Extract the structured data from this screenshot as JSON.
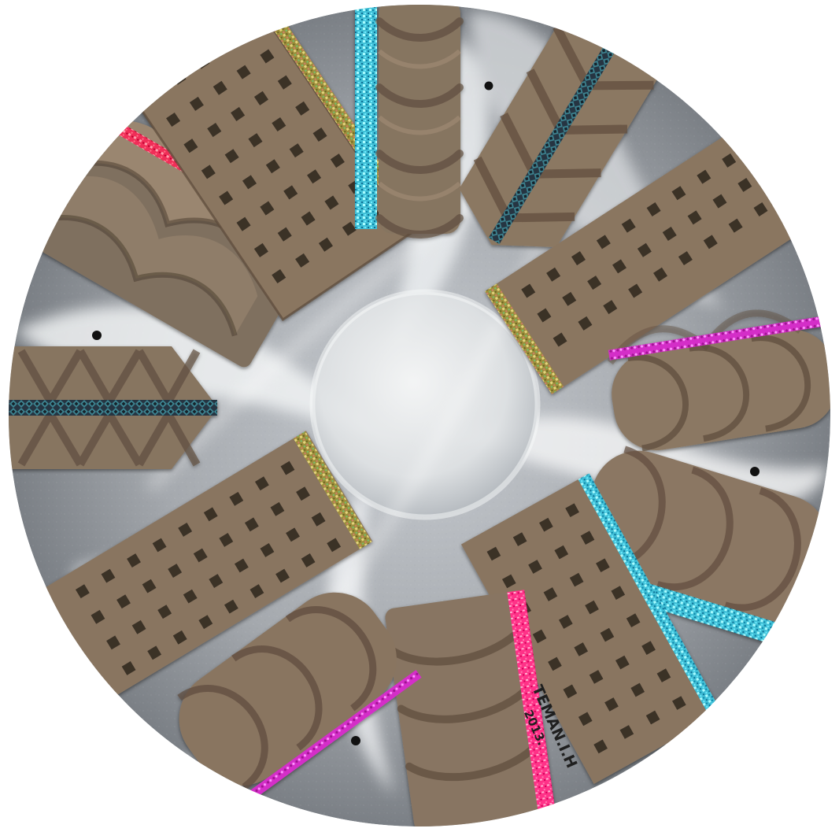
{
  "artwork": {
    "signature_name": "TEMAN.I.H",
    "signature_year": "2013.",
    "colors": {
      "background": "#ffffff",
      "disc_base": "#a4a8ad",
      "disc_dark": "#6f747a",
      "mist": "#eef1f3",
      "card": "#877460",
      "card_dark": "#5a4938",
      "card_light": "#9e8a74",
      "cyan": "#42c6dc",
      "magenta": "#d72bc6",
      "red": "#ef2f57",
      "pink": "#ff2f82",
      "gold": "#b2a24b",
      "gold_dark": "#786a2d",
      "dark_stripe": "#283845",
      "dot": "#111111"
    }
  }
}
